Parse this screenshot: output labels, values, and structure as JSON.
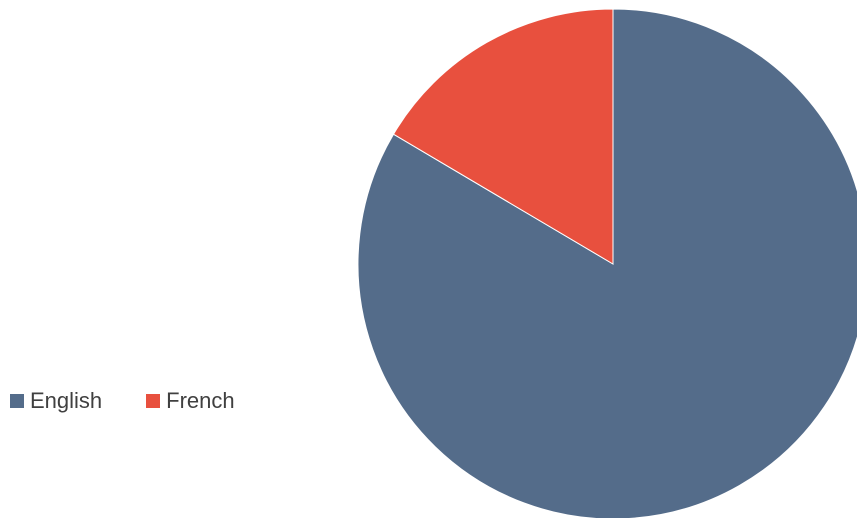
{
  "chart_data": {
    "type": "pie",
    "title": "",
    "start_angle_deg": 0,
    "direction": "clockwise",
    "legend_position": "left",
    "slices": [
      {
        "label": "English",
        "value": 83.5,
        "color": "#546c8a"
      },
      {
        "label": "French",
        "value": 16.5,
        "color": "#e8503e"
      }
    ]
  }
}
